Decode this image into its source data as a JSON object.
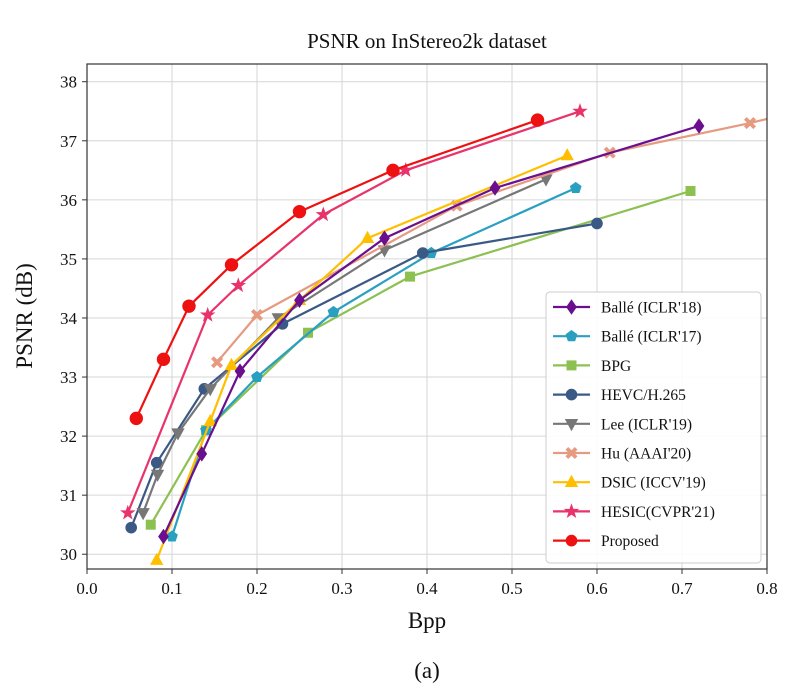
{
  "chart_data": {
    "type": "line",
    "title": "PSNR on InStereo2k dataset",
    "xlabel": "Bpp",
    "ylabel": "PSNR (dB)",
    "xlim": [
      0.0,
      0.8
    ],
    "ylim": [
      29.75,
      38.3
    ],
    "xticks": [
      "0.0",
      "0.1",
      "0.2",
      "0.3",
      "0.4",
      "0.5",
      "0.6",
      "0.7",
      "0.8"
    ],
    "yticks": [
      "30",
      "31",
      "32",
      "33",
      "34",
      "35",
      "36",
      "37",
      "38"
    ],
    "grid": true,
    "legend_position": "lower-right",
    "series": [
      {
        "name": "Ballé (ICLR'18)",
        "color": "#6a0f8e",
        "marker": "diamond",
        "x": [
          0.09,
          0.135,
          0.18,
          0.25,
          0.35,
          0.48,
          0.72
        ],
        "y": [
          30.3,
          31.7,
          33.1,
          34.3,
          35.35,
          36.2,
          37.25
        ]
      },
      {
        "name": "Ballé (ICLR'17)",
        "color": "#2aa0c0",
        "marker": "pentagon",
        "x": [
          0.1,
          0.14,
          0.2,
          0.29,
          0.405,
          0.575
        ],
        "y": [
          30.3,
          32.1,
          33.0,
          34.1,
          35.1,
          36.2
        ]
      },
      {
        "name": "BPG",
        "color": "#8cc152",
        "marker": "square",
        "x": [
          0.075,
          0.14,
          0.26,
          0.38,
          0.71
        ],
        "y": [
          30.5,
          32.1,
          33.75,
          34.7,
          36.15
        ]
      },
      {
        "name": "HEVC/H.265",
        "color": "#3a5a85",
        "marker": "circle",
        "x": [
          0.052,
          0.082,
          0.138,
          0.23,
          0.395,
          0.6
        ],
        "y": [
          30.45,
          31.55,
          32.8,
          33.9,
          35.1,
          35.6
        ]
      },
      {
        "name": "Lee (ICLR'19)",
        "color": "#777777",
        "marker": "triangle-down",
        "x": [
          0.066,
          0.083,
          0.107,
          0.145,
          0.225,
          0.35,
          0.54
        ],
        "y": [
          30.7,
          31.35,
          32.05,
          32.8,
          34.0,
          35.15,
          36.35
        ]
      },
      {
        "name": "Hu (AAAI'20)",
        "color": "#e69a80",
        "marker": "x-filled",
        "x": [
          0.153,
          0.2,
          0.435,
          0.615,
          0.78,
          0.8
        ],
        "y": [
          33.25,
          34.05,
          35.9,
          36.8,
          37.3,
          37.37
        ]
      },
      {
        "name": "DSIC (ICCV'19)",
        "color": "#ffbf00",
        "marker": "triangle-up",
        "x": [
          0.082,
          0.145,
          0.17,
          0.25,
          0.33,
          0.565
        ],
        "y": [
          29.9,
          32.25,
          33.2,
          34.3,
          35.35,
          36.75
        ]
      },
      {
        "name": "HESIC(CVPR'21)",
        "color": "#e8336b",
        "marker": "star",
        "x": [
          0.048,
          0.142,
          0.178,
          0.278,
          0.375,
          0.58
        ],
        "y": [
          30.7,
          34.05,
          34.55,
          35.75,
          36.5,
          37.5
        ]
      },
      {
        "name": "Proposed",
        "color": "#ee1111",
        "marker": "circle",
        "x": [
          0.058,
          0.09,
          0.12,
          0.17,
          0.25,
          0.36,
          0.53
        ],
        "y": [
          32.3,
          33.3,
          34.2,
          34.9,
          35.8,
          36.5,
          37.35
        ]
      }
    ]
  },
  "caption": "(a)"
}
